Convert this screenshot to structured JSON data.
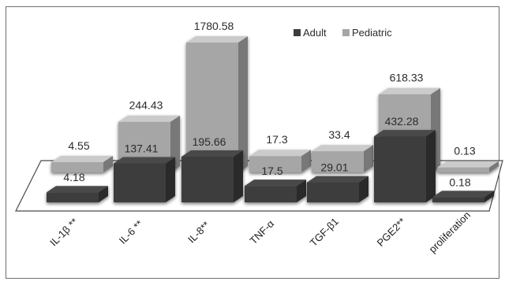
{
  "chart_data": {
    "type": "bar",
    "style": "3d-grouped",
    "categories": [
      "IL-1β **",
      "IL-6 **",
      "IL-8**",
      "TNF-α",
      "TGF-β1",
      "PGE2**",
      "proliferation"
    ],
    "series": [
      {
        "name": "Adult",
        "color": "#3d3d3d",
        "values": [
          4.18,
          137.41,
          195.66,
          17.5,
          29.01,
          432.28,
          0.18
        ]
      },
      {
        "name": "Pediatric",
        "color": "#a6a6a6",
        "values": [
          4.55,
          244.43,
          1780.58,
          17.3,
          33.4,
          618.33,
          0.13
        ]
      }
    ],
    "data_labels": {
      "Adult": [
        "4.18",
        "137.41",
        "195.66",
        "17.5",
        "29.01",
        "432.28",
        "0.18"
      ],
      "Pediatric": [
        "4.55",
        "244.43",
        "1780.58",
        "17.3",
        "33.4",
        "618.33",
        "0.13"
      ]
    },
    "title": "",
    "xlabel": "",
    "ylabel": "",
    "legend": {
      "position": "top-right"
    },
    "grid": false
  }
}
